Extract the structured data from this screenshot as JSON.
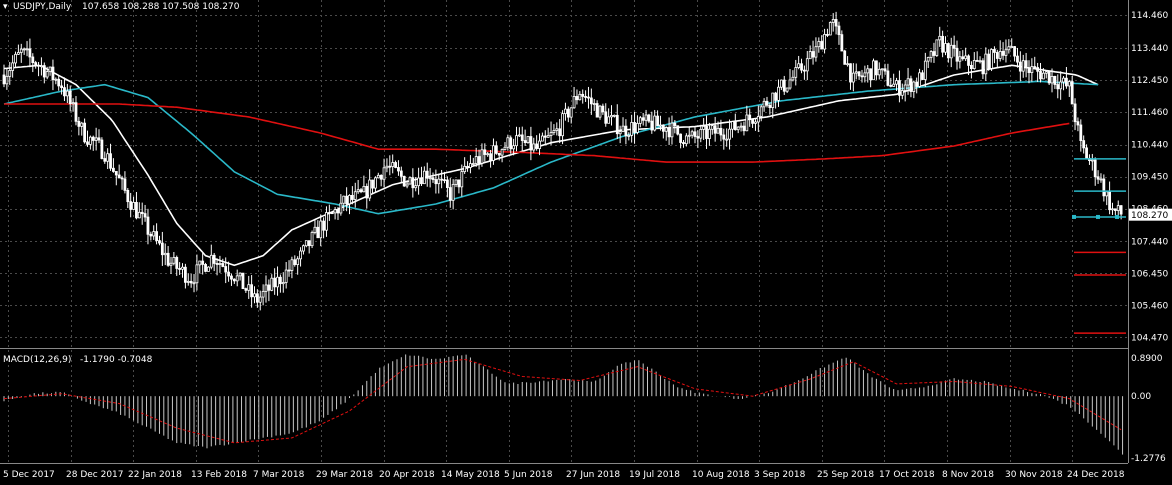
{
  "symbol_header": {
    "symbol": "USDJPY,Daily",
    "ohlc": "107.658 108.288 107.508 108.270"
  },
  "indicator_header": {
    "name": "MACD(12,26,9)",
    "values": "-1.1790 -0.7048"
  },
  "colors": {
    "background": "#000000",
    "grid": "#4a4a4a",
    "candle": "#ffffff",
    "ma_fast": "#ffffff",
    "ma_mid": "#2ab8c8",
    "ma_slow": "#e01010",
    "macd_hist": "#c8c8c8",
    "macd_signal": "#e01010",
    "level_cyan": "#2ab8c8",
    "level_red": "#e01010"
  },
  "price_axis": {
    "ticks": [
      "114.460",
      "113.440",
      "112.450",
      "111.460",
      "110.440",
      "109.450",
      "108.460",
      "107.440",
      "106.450",
      "105.460",
      "104.470"
    ],
    "current_price": "108.270"
  },
  "macd_axis": {
    "ticks": [
      "0.8900",
      "0.00",
      "-1.2776"
    ]
  },
  "time_axis": {
    "labels": [
      "5 Dec 2017",
      "28 Dec 2017",
      "22 Jan 2018",
      "13 Feb 2018",
      "7 Mar 2018",
      "29 Mar 2018",
      "20 Apr 2018",
      "14 May 2018",
      "5 Jun 2018",
      "27 Jun 2018",
      "19 Jul 2018",
      "10 Aug 2018",
      "3 Sep 2018",
      "25 Sep 2018",
      "17 Oct 2018",
      "8 Nov 2018",
      "30 Nov 2018",
      "24 Dec 2018"
    ]
  },
  "chart_data": {
    "type": "candlestick",
    "symbol": "USDJPY",
    "timeframe": "Daily",
    "price_range": [
      104.2,
      114.8
    ],
    "close_keypoints": [
      [
        0,
        112.6
      ],
      [
        12,
        113.3
      ],
      [
        25,
        112.9
      ],
      [
        40,
        112.3
      ],
      [
        55,
        110.8
      ],
      [
        70,
        110.2
      ],
      [
        85,
        108.9
      ],
      [
        100,
        107.8
      ],
      [
        115,
        106.8
      ],
      [
        130,
        106.3
      ],
      [
        145,
        107.0
      ],
      [
        160,
        106.4
      ],
      [
        175,
        105.6
      ],
      [
        190,
        106.2
      ],
      [
        205,
        106.9
      ],
      [
        220,
        107.9
      ],
      [
        235,
        108.6
      ],
      [
        250,
        108.9
      ],
      [
        265,
        109.8
      ],
      [
        280,
        109.3
      ],
      [
        295,
        109.6
      ],
      [
        310,
        108.9
      ],
      [
        325,
        109.9
      ],
      [
        340,
        110.2
      ],
      [
        355,
        110.6
      ],
      [
        370,
        110.3
      ],
      [
        385,
        110.9
      ],
      [
        400,
        112.1
      ],
      [
        415,
        111.4
      ],
      [
        430,
        110.9
      ],
      [
        445,
        111.1
      ],
      [
        460,
        111.0
      ],
      [
        475,
        110.6
      ],
      [
        490,
        110.8
      ],
      [
        505,
        110.9
      ],
      [
        520,
        111.3
      ],
      [
        535,
        112.0
      ],
      [
        550,
        112.6
      ],
      [
        565,
        113.4
      ],
      [
        575,
        114.3
      ],
      [
        590,
        112.4
      ],
      [
        605,
        112.8
      ],
      [
        620,
        112.2
      ],
      [
        635,
        112.4
      ],
      [
        650,
        113.6
      ],
      [
        665,
        113.0
      ],
      [
        680,
        112.9
      ],
      [
        695,
        113.5
      ],
      [
        710,
        112.8
      ],
      [
        725,
        112.6
      ],
      [
        740,
        112.2
      ],
      [
        748,
        110.4
      ],
      [
        760,
        109.5
      ],
      [
        770,
        108.4
      ],
      [
        777,
        108.27
      ]
    ],
    "moving_averages": [
      {
        "color": "#ffffff",
        "keypoints": [
          [
            0,
            112.8
          ],
          [
            25,
            112.9
          ],
          [
            50,
            112.3
          ],
          [
            75,
            111.2
          ],
          [
            100,
            109.5
          ],
          [
            120,
            108.0
          ],
          [
            140,
            107.0
          ],
          [
            160,
            106.7
          ],
          [
            180,
            107.0
          ],
          [
            200,
            107.8
          ],
          [
            230,
            108.4
          ],
          [
            270,
            109.2
          ],
          [
            320,
            109.7
          ],
          [
            380,
            110.5
          ],
          [
            430,
            110.9
          ],
          [
            480,
            111.0
          ],
          [
            530,
            111.3
          ],
          [
            580,
            111.8
          ],
          [
            620,
            112.0
          ],
          [
            660,
            112.6
          ],
          [
            700,
            112.9
          ],
          [
            730,
            112.7
          ],
          [
            745,
            112.6
          ],
          [
            760,
            112.3
          ]
        ]
      },
      {
        "color": "#2ab8c8",
        "keypoints": [
          [
            0,
            111.7
          ],
          [
            40,
            112.1
          ],
          [
            70,
            112.3
          ],
          [
            100,
            111.9
          ],
          [
            130,
            110.8
          ],
          [
            160,
            109.6
          ],
          [
            190,
            108.9
          ],
          [
            230,
            108.6
          ],
          [
            260,
            108.3
          ],
          [
            300,
            108.6
          ],
          [
            340,
            109.1
          ],
          [
            380,
            109.9
          ],
          [
            430,
            110.7
          ],
          [
            480,
            111.3
          ],
          [
            540,
            111.8
          ],
          [
            600,
            112.1
          ],
          [
            660,
            112.3
          ],
          [
            720,
            112.4
          ],
          [
            760,
            112.3
          ]
        ]
      },
      {
        "color": "#e01010",
        "keypoints": [
          [
            0,
            111.7
          ],
          [
            80,
            111.7
          ],
          [
            120,
            111.6
          ],
          [
            170,
            111.3
          ],
          [
            220,
            110.8
          ],
          [
            260,
            110.3
          ],
          [
            300,
            110.3
          ],
          [
            360,
            110.2
          ],
          [
            410,
            110.1
          ],
          [
            460,
            109.9
          ],
          [
            520,
            109.9
          ],
          [
            570,
            110.0
          ],
          [
            610,
            110.1
          ],
          [
            660,
            110.4
          ],
          [
            700,
            110.8
          ],
          [
            740,
            111.1
          ]
        ]
      }
    ],
    "horizontal_levels": [
      {
        "price": 110.0,
        "color": "#2ab8c8"
      },
      {
        "price": 109.0,
        "color": "#2ab8c8"
      },
      {
        "price": 108.2,
        "color": "#2ab8c8"
      },
      {
        "price": 107.1,
        "color": "#e01010"
      },
      {
        "price": 106.4,
        "color": "#e01010"
      },
      {
        "price": 104.6,
        "color": "#e01010"
      }
    ],
    "macd": {
      "params": "12,26,9",
      "macd_value": -1.179,
      "signal_value": -0.7048,
      "range": [
        -1.3,
        0.9
      ],
      "hist_keypoints": [
        [
          0,
          -0.1
        ],
        [
          20,
          0.05
        ],
        [
          40,
          0.08
        ],
        [
          60,
          -0.15
        ],
        [
          80,
          -0.35
        ],
        [
          100,
          -0.65
        ],
        [
          120,
          -0.95
        ],
        [
          140,
          -1.05
        ],
        [
          160,
          -0.95
        ],
        [
          180,
          -0.85
        ],
        [
          200,
          -0.75
        ],
        [
          220,
          -0.5
        ],
        [
          240,
          -0.05
        ],
        [
          260,
          0.55
        ],
        [
          280,
          0.85
        ],
        [
          300,
          0.75
        ],
        [
          320,
          0.85
        ],
        [
          335,
          0.55
        ],
        [
          350,
          0.25
        ],
        [
          370,
          0.3
        ],
        [
          390,
          0.35
        ],
        [
          410,
          0.28
        ],
        [
          425,
          0.6
        ],
        [
          440,
          0.75
        ],
        [
          455,
          0.45
        ],
        [
          470,
          0.15
        ],
        [
          490,
          0.02
        ],
        [
          510,
          -0.05
        ],
        [
          530,
          0.05
        ],
        [
          550,
          0.3
        ],
        [
          570,
          0.6
        ],
        [
          585,
          0.8
        ],
        [
          600,
          0.45
        ],
        [
          620,
          0.1
        ],
        [
          640,
          0.2
        ],
        [
          660,
          0.35
        ],
        [
          680,
          0.3
        ],
        [
          700,
          0.15
        ],
        [
          720,
          0.05
        ],
        [
          740,
          -0.2
        ],
        [
          760,
          -0.7
        ],
        [
          777,
          -1.18
        ]
      ],
      "signal_keypoints": [
        [
          0,
          -0.05
        ],
        [
          40,
          0.05
        ],
        [
          80,
          -0.15
        ],
        [
          120,
          -0.65
        ],
        [
          160,
          -0.95
        ],
        [
          200,
          -0.85
        ],
        [
          240,
          -0.3
        ],
        [
          280,
          0.6
        ],
        [
          320,
          0.75
        ],
        [
          360,
          0.4
        ],
        [
          400,
          0.32
        ],
        [
          440,
          0.6
        ],
        [
          480,
          0.15
        ],
        [
          520,
          0.0
        ],
        [
          560,
          0.35
        ],
        [
          590,
          0.7
        ],
        [
          620,
          0.25
        ],
        [
          660,
          0.3
        ],
        [
          700,
          0.2
        ],
        [
          740,
          -0.05
        ],
        [
          777,
          -0.7
        ]
      ]
    }
  }
}
